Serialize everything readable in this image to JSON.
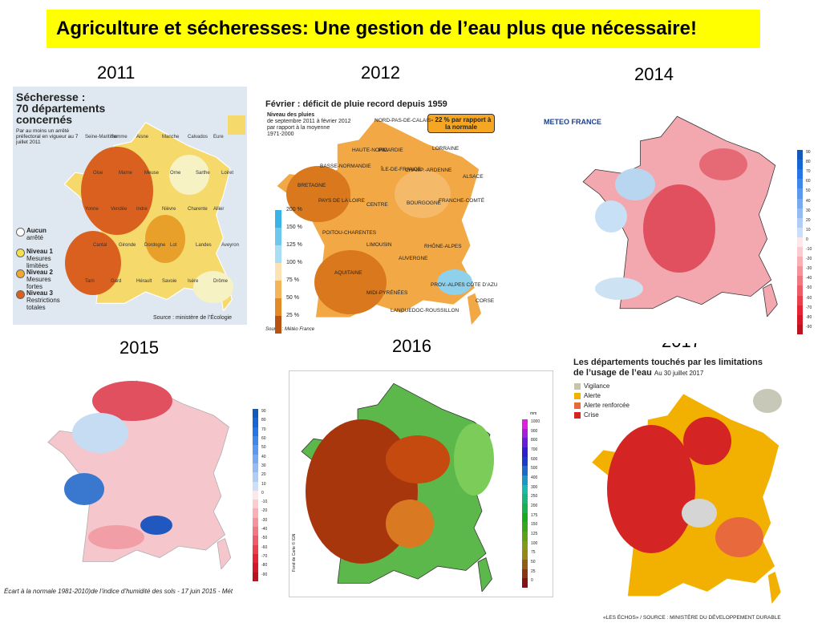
{
  "title": "Agriculture et sécheresses: Une gestion de l’eau plus que nécessaire!",
  "panels": [
    {
      "year": "2011",
      "title": [
        "Sécheresse :",
        "70 départements",
        "concernés"
      ],
      "subtitle": "Par au moins un arrêté préfectoral en vigueur au 7 juillet 2011",
      "legend": [
        {
          "level": "Aucun",
          "desc": "arrêté"
        },
        {
          "level": "Niveau 1",
          "desc": "Mesures limitées"
        },
        {
          "level": "Niveau 2",
          "desc": "Mesures fortes"
        },
        {
          "level": "Niveau 3",
          "desc": "Restrictions totales"
        }
      ],
      "labels": [
        "Seine-Maritime",
        "Somme",
        "Aisne",
        "Manche",
        "Calvados",
        "Eure",
        "Oise",
        "Marne",
        "Meuse",
        "Orne",
        "Sarthe",
        "Loiret",
        "Yonne",
        "Vendée",
        "Indre",
        "Nièvre",
        "Charente",
        "Allier",
        "Cantal",
        "Gironde",
        "Dordogne",
        "Lot",
        "Landes",
        "Aveyron",
        "Tarn",
        "Gard",
        "Hérault",
        "Savoie",
        "Isère",
        "Drôme"
      ],
      "source": "Source : ministère de l’Écologie"
    },
    {
      "year": "2012",
      "title": "Février : déficit de pluie record depuis 1959",
      "subtitle": [
        "Niveau des pluies",
        "de septembre 2011 à février 2012",
        "par rapport à la moyenne",
        "1971-2000"
      ],
      "callout": "- 22 % par rapport à la normale",
      "legend": [
        "200 %",
        "150 %",
        "125 %",
        "100 %",
        "75 %",
        "50 %",
        "25 %"
      ],
      "regions": [
        "NORD-PAS-DE-CALAIS",
        "PICARDIE",
        "HAUTE-NORM.",
        "BASSE-NORMANDIE",
        "ÎLE-DE-FRANCE",
        "CHAMP.-ARDENNE",
        "LORRAINE",
        "ALSACE",
        "BRETAGNE",
        "PAYS DE LA LOIRE",
        "CENTRE",
        "BOURGOGNE",
        "FRANCHE-COMTÉ",
        "POITOU-CHARENTES",
        "LIMOUSIN",
        "AUVERGNE",
        "RHÔNE-ALPES",
        "AQUITAINE",
        "MIDI-PYRÉNÉES",
        "LANGUEDOC-ROUSSILLON",
        "PROV.-ALPES CÔTE D’AZUR",
        "CORSE"
      ],
      "source": "Source : Météo France"
    },
    {
      "year": "2014",
      "logo": "METEO FRANCE",
      "colorbar": [
        90,
        80,
        70,
        60,
        50,
        40,
        30,
        20,
        10,
        0,
        -10,
        -20,
        -30,
        -40,
        -50,
        -60,
        -70,
        -80,
        -90
      ]
    },
    {
      "year": "2015",
      "colorbar": [
        90,
        80,
        70,
        60,
        50,
        40,
        30,
        20,
        10,
        0,
        -10,
        -20,
        -30,
        -40,
        -50,
        -60,
        -70,
        -80,
        -90
      ],
      "caption": "Écart à la normale 1981-2010)de l’indice d’humidité des sols - 17 juin 2015 - Mét"
    },
    {
      "year": "2016",
      "credit": "Fond de Carte © IGN",
      "unit": "mm",
      "colorbar": [
        1000,
        900,
        800,
        700,
        600,
        500,
        400,
        300,
        250,
        200,
        175,
        150,
        125,
        100,
        75,
        50,
        25,
        0
      ]
    },
    {
      "year": "2017",
      "title": [
        "Les départements touchés par les limitations",
        "de l’usage de l’eau"
      ],
      "date": "Au 30 juillet 2017",
      "legend": [
        "Vigilance",
        "Alerte",
        "Alerte renforcée",
        "Crise"
      ],
      "source": "«LES ÉCHOS» / SOURCE : MINISTÈRE DU DÉVELOPPEMENT DURABLE"
    }
  ]
}
